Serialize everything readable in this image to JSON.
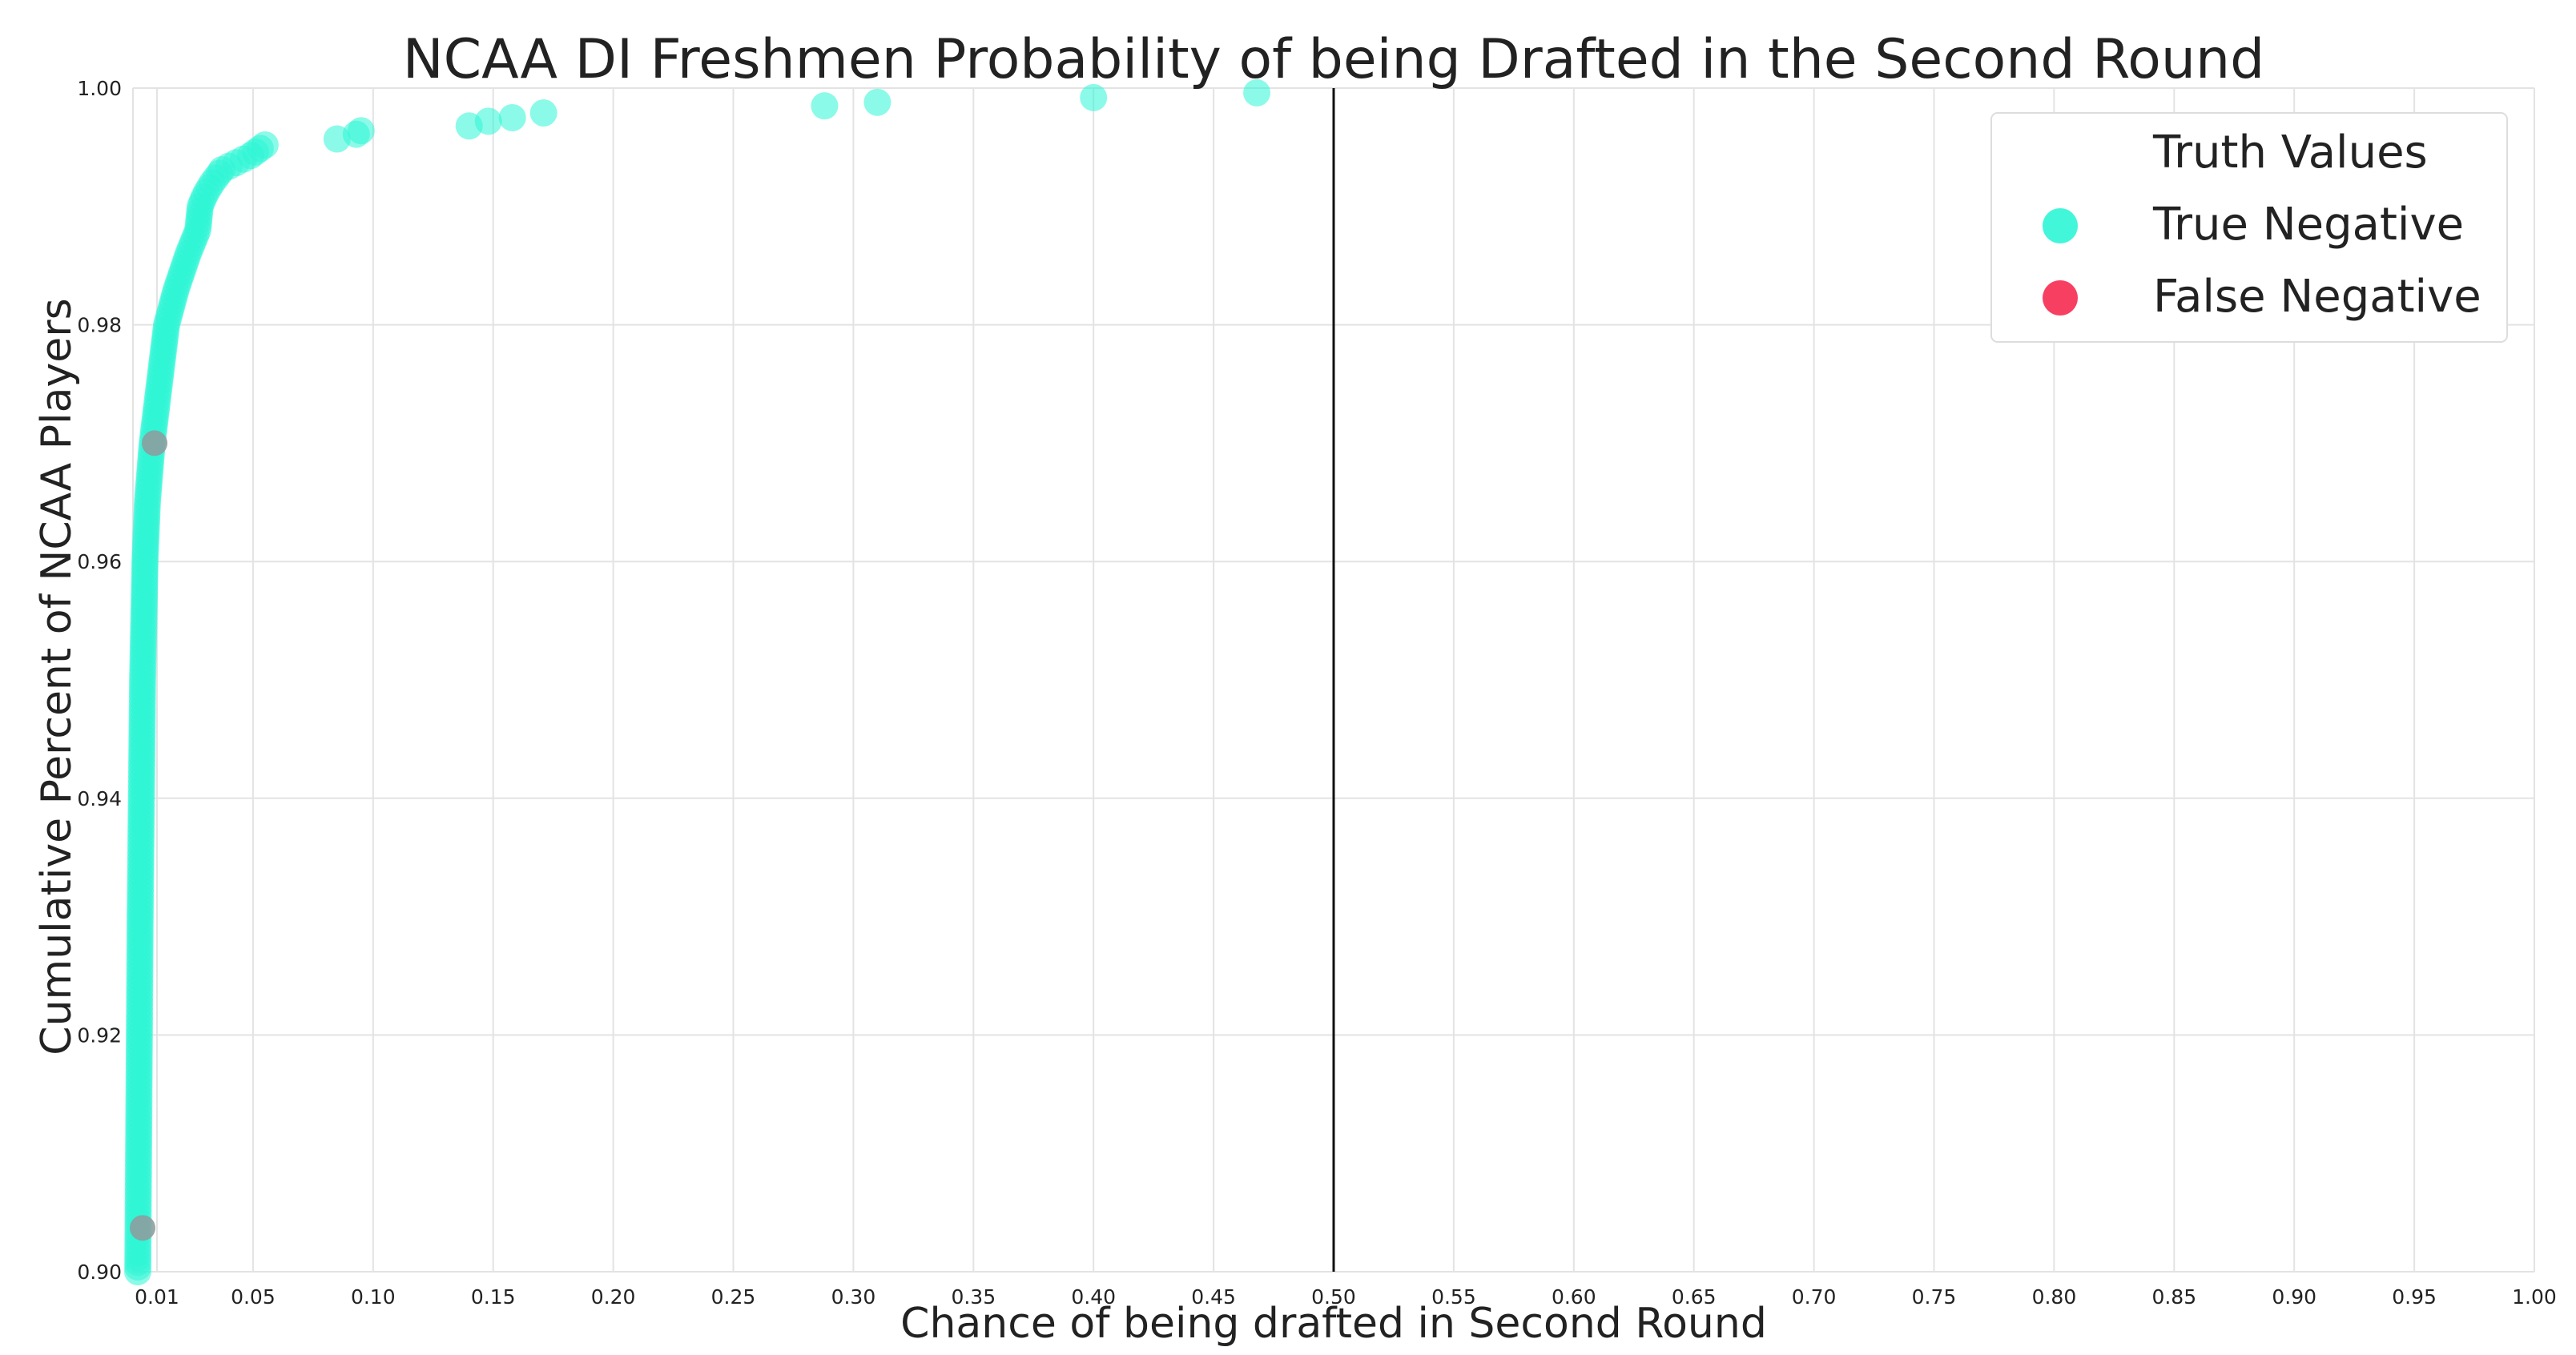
{
  "chart_data": {
    "type": "scatter",
    "title": "NCAA DI Freshmen Probability of being Drafted in the Second Round",
    "xlabel": "Chance of being drafted in Second Round",
    "ylabel": "Cumulative Percent of NCAA Players",
    "xlim": [
      0.0,
      1.0
    ],
    "ylim": [
      0.9,
      1.0
    ],
    "x_ticks": [
      0.01,
      0.05,
      0.1,
      0.15,
      0.2,
      0.25,
      0.3,
      0.35,
      0.4,
      0.45,
      0.5,
      0.55,
      0.6,
      0.65,
      0.7,
      0.75,
      0.8,
      0.85,
      0.9,
      0.95,
      1.0
    ],
    "x_tick_labels": [
      "0.01",
      "0.05",
      "0.10",
      "0.15",
      "0.20",
      "0.25",
      "0.30",
      "0.35",
      "0.40",
      "0.45",
      "0.50",
      "0.55",
      "0.60",
      "0.65",
      "0.70",
      "0.75",
      "0.80",
      "0.85",
      "0.90",
      "0.95",
      "1.00"
    ],
    "y_ticks": [
      0.9,
      0.92,
      0.94,
      0.96,
      0.98,
      1.0
    ],
    "y_tick_labels": [
      "0.90",
      "0.92",
      "0.94",
      "0.96",
      "0.98",
      "1.00"
    ],
    "grid": true,
    "threshold_x": 0.5,
    "legend": {
      "title": "Truth Values",
      "placement": "top-right",
      "entries": [
        {
          "label": "True Negative",
          "color": "#2ef5d6"
        },
        {
          "label": "False Negative",
          "color": "#f7355a"
        }
      ]
    },
    "series": [
      {
        "name": "True Negative",
        "color": "#2ef5d6",
        "outliers": [
          [
            0.037,
            0.9931
          ],
          [
            0.04,
            0.9934
          ],
          [
            0.043,
            0.9937
          ],
          [
            0.046,
            0.994
          ],
          [
            0.049,
            0.9943
          ],
          [
            0.051,
            0.9946
          ],
          [
            0.053,
            0.9949
          ],
          [
            0.055,
            0.9952
          ],
          [
            0.085,
            0.9957
          ],
          [
            0.093,
            0.9961
          ],
          [
            0.095,
            0.9964
          ],
          [
            0.14,
            0.9968
          ],
          [
            0.148,
            0.9972
          ],
          [
            0.158,
            0.9975
          ],
          [
            0.171,
            0.9979
          ],
          [
            0.288,
            0.9985
          ],
          [
            0.31,
            0.9988
          ],
          [
            0.4,
            0.9992
          ],
          [
            0.468,
            0.9996
          ]
        ]
      },
      {
        "name": "False Negative",
        "color": "#f7355a",
        "points": [
          [
            0.004,
            0.9037
          ],
          [
            0.009,
            0.97
          ]
        ]
      }
    ]
  }
}
